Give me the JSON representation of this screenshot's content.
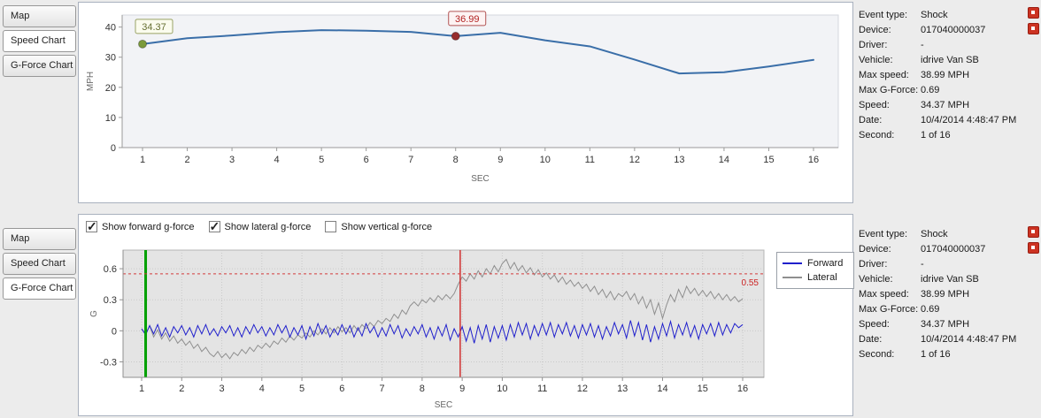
{
  "colors": {
    "speed_line": "#3a6ea8",
    "forward": "#2020cc",
    "lateral": "#8f8f8f",
    "threshold": "#d23b3b",
    "cursor_green": "#00a000",
    "cursor_red": "#d03030"
  },
  "tabs": {
    "labels": [
      "Map",
      "Speed Chart",
      "G-Force Chart"
    ],
    "top_selected": "Speed Chart",
    "bottom_selected": "G-Force Chart"
  },
  "info": {
    "rows": [
      {
        "label": "Event type:",
        "value": "Shock"
      },
      {
        "label": "Device:",
        "value": "017040000037"
      },
      {
        "label": "Driver:",
        "value": "-"
      },
      {
        "label": "Vehicle:",
        "value": "idrive Van SB"
      },
      {
        "label": "Max speed:",
        "value": "38.99 MPH"
      },
      {
        "label": "Max G-Force:",
        "value": "0.69"
      },
      {
        "label": "Speed:",
        "value": "34.37 MPH"
      },
      {
        "label": "Date:",
        "value": "10/4/2014 4:48:47 PM"
      },
      {
        "label": "Second:",
        "value": "1 of 16"
      }
    ]
  },
  "gforce_controls": [
    {
      "label": "Show forward g-force",
      "checked": true
    },
    {
      "label": "Show lateral g-force",
      "checked": true
    },
    {
      "label": "Show vertical g-force",
      "checked": false
    }
  ],
  "chart_data": [
    {
      "type": "line",
      "title": "Speed Chart",
      "xlabel": "SEC",
      "ylabel": "MPH",
      "ylim": [
        0,
        44
      ],
      "yticks": [
        0,
        10,
        20,
        30,
        40
      ],
      "xticks": [
        1,
        2,
        3,
        4,
        5,
        6,
        7,
        8,
        9,
        10,
        11,
        12,
        13,
        14,
        15,
        16
      ],
      "x": [
        1,
        2,
        3,
        4,
        5,
        6,
        7,
        8,
        9,
        10,
        11,
        12,
        13,
        14,
        15,
        16
      ],
      "values": [
        34.37,
        36.3,
        37.2,
        38.3,
        38.99,
        38.8,
        38.4,
        36.99,
        38.1,
        35.6,
        33.6,
        29.2,
        24.6,
        25.0,
        26.9,
        29.1
      ],
      "markers": [
        {
          "x": 1,
          "y": 34.37,
          "label": "34.37",
          "color": "#7b9a3a",
          "box_fill": "#fbfcee",
          "box_border": "#9aa366",
          "text_color": "#667033"
        },
        {
          "x": 8,
          "y": 36.99,
          "label": "36.99",
          "color": "#962c2c",
          "box_fill": "#fdf3f3",
          "box_border": "#b25353",
          "text_color": "#b22222"
        }
      ]
    },
    {
      "type": "line",
      "title": "G-Force Chart",
      "xlabel": "SEC",
      "ylabel": "G",
      "ylim": [
        -0.45,
        0.78
      ],
      "yticks": [
        -0.3,
        0,
        0.3,
        0.6
      ],
      "xticks": [
        1,
        2,
        3,
        4,
        5,
        6,
        7,
        8,
        9,
        10,
        11,
        12,
        13,
        14,
        15,
        16
      ],
      "x_start": 1.0,
      "x_step": 0.1,
      "grid": true,
      "legend_position": "right",
      "threshold": {
        "y": 0.55,
        "label": "0.55"
      },
      "cursors": [
        {
          "name": "start-cursor",
          "x": 1.1,
          "color": "#00a000",
          "width": 3
        },
        {
          "name": "event-cursor",
          "x": 8.95,
          "color": "#d03030",
          "width": 1.5
        }
      ],
      "series": [
        {
          "name": "Forward",
          "color": "#2020cc",
          "values": [
            0.02,
            -0.04,
            0.05,
            -0.03,
            0.06,
            -0.05,
            0.03,
            -0.06,
            0.04,
            -0.02,
            0.05,
            -0.04,
            0.03,
            -0.06,
            0.05,
            -0.03,
            0.06,
            -0.04,
            0.02,
            -0.05,
            0.04,
            -0.02,
            0.05,
            -0.05,
            0.03,
            -0.06,
            0.04,
            -0.03,
            0.06,
            -0.02,
            0.04,
            -0.05,
            0.03,
            -0.04,
            0.06,
            -0.02,
            0.05,
            -0.06,
            0.03,
            -0.04,
            0.05,
            -0.08,
            0.04,
            -0.05,
            0.07,
            -0.03,
            0.05,
            -0.06,
            0.02,
            -0.04,
            0.06,
            -0.03,
            0.05,
            -0.06,
            0.03,
            -0.05,
            0.07,
            -0.02,
            0.04,
            -0.06,
            0.03,
            -0.05,
            0.06,
            -0.03,
            0.05,
            -0.07,
            0.02,
            -0.05,
            0.04,
            -0.03,
            0.06,
            -0.06,
            0.03,
            -0.08,
            0.04,
            -0.05,
            0.06,
            -0.09,
            0.02,
            -0.06,
            0.04,
            -0.1,
            0.03,
            -0.12,
            0.05,
            -0.08,
            0.06,
            -0.11,
            0.04,
            -0.07,
            0.05,
            -0.09,
            0.06,
            -0.06,
            0.08,
            -0.04,
            0.07,
            -0.08,
            0.05,
            -0.05,
            0.07,
            -0.04,
            0.08,
            -0.06,
            0.06,
            -0.03,
            0.08,
            -0.05,
            0.05,
            -0.07,
            0.06,
            -0.04,
            0.07,
            -0.06,
            0.05,
            -0.08,
            0.04,
            -0.05,
            0.08,
            -0.03,
            0.06,
            -0.07,
            0.1,
            -0.05,
            0.08,
            -0.09,
            0.06,
            -0.11,
            0.04,
            -0.08,
            0.07,
            -0.05,
            0.09,
            -0.07,
            0.06,
            -0.04,
            0.08,
            -0.06,
            0.05,
            -0.08,
            0.06,
            -0.03,
            0.07,
            -0.05,
            0.08,
            -0.04,
            0.06,
            -0.02,
            0.07,
            0.03,
            0.06
          ]
        },
        {
          "name": "Lateral",
          "color": "#8f8f8f",
          "values": [
            0.02,
            -0.03,
            0.05,
            -0.06,
            0.01,
            -0.08,
            -0.02,
            -0.1,
            -0.05,
            -0.12,
            -0.08,
            -0.14,
            -0.1,
            -0.17,
            -0.13,
            -0.2,
            -0.16,
            -0.22,
            -0.25,
            -0.2,
            -0.26,
            -0.22,
            -0.27,
            -0.21,
            -0.24,
            -0.18,
            -0.22,
            -0.16,
            -0.2,
            -0.14,
            -0.17,
            -0.12,
            -0.16,
            -0.1,
            -0.13,
            -0.07,
            -0.11,
            -0.05,
            -0.09,
            -0.04,
            -0.07,
            -0.02,
            -0.06,
            0.0,
            -0.04,
            0.02,
            -0.03,
            0.03,
            -0.02,
            0.04,
            -0.01,
            0.03,
            -0.02,
            0.05,
            0.0,
            0.06,
            0.02,
            0.08,
            0.04,
            0.1,
            0.07,
            0.12,
            0.09,
            0.16,
            0.12,
            0.2,
            0.16,
            0.24,
            0.28,
            0.24,
            0.3,
            0.27,
            0.32,
            0.28,
            0.34,
            0.3,
            0.35,
            0.31,
            0.36,
            0.45,
            0.52,
            0.48,
            0.55,
            0.5,
            0.58,
            0.52,
            0.6,
            0.55,
            0.63,
            0.57,
            0.65,
            0.69,
            0.6,
            0.66,
            0.58,
            0.63,
            0.56,
            0.61,
            0.54,
            0.59,
            0.52,
            0.56,
            0.5,
            0.54,
            0.47,
            0.52,
            0.45,
            0.49,
            0.43,
            0.47,
            0.41,
            0.45,
            0.38,
            0.43,
            0.35,
            0.4,
            0.32,
            0.38,
            0.3,
            0.36,
            0.33,
            0.38,
            0.3,
            0.36,
            0.26,
            0.33,
            0.22,
            0.3,
            0.16,
            0.27,
            0.12,
            0.25,
            0.35,
            0.28,
            0.4,
            0.32,
            0.43,
            0.36,
            0.41,
            0.34,
            0.39,
            0.33,
            0.38,
            0.31,
            0.36,
            0.3,
            0.35,
            0.29,
            0.33,
            0.28,
            0.31
          ]
        }
      ]
    }
  ]
}
